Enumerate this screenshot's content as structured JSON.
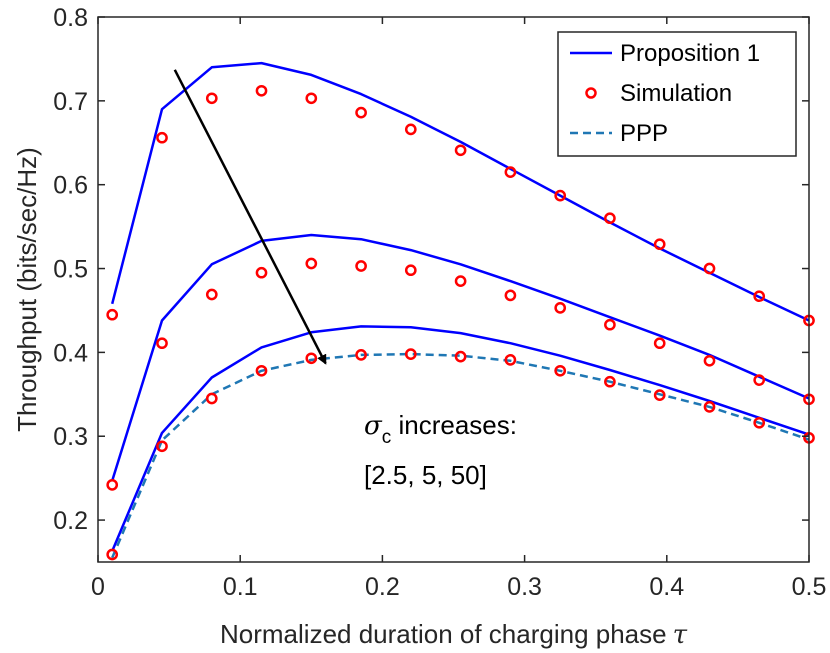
{
  "chart_data": {
    "type": "line",
    "xlabel": "Normalized duration of charging phase",
    "xlabel_symbol": "τ",
    "ylabel": "Throughput (bits/sec/Hz)",
    "xlim": [
      0,
      0.5
    ],
    "ylim": [
      0.15,
      0.8
    ],
    "xticks": [
      0,
      0.1,
      0.2,
      0.3,
      0.4,
      0.5
    ],
    "xtick_labels": [
      "0",
      "0.1",
      "0.2",
      "0.3",
      "0.4",
      "0.5"
    ],
    "yticks": [
      0.2,
      0.3,
      0.4,
      0.5,
      0.6,
      0.7,
      0.8
    ],
    "ytick_labels": [
      "0.2",
      "0.3",
      "0.4",
      "0.5",
      "0.6",
      "0.7",
      "0.8"
    ],
    "grid": false,
    "legend_position": "top-right",
    "legend": [
      "Proposition 1",
      "Simulation",
      "PPP"
    ],
    "x": [
      0.01,
      0.045,
      0.08,
      0.115,
      0.15,
      0.185,
      0.22,
      0.255,
      0.29,
      0.325,
      0.36,
      0.395,
      0.43,
      0.465,
      0.5
    ],
    "series": [
      {
        "name": "Proposition 1",
        "style": "solid",
        "color": "#0000ff",
        "sigma_c": 2.5,
        "values": [
          0.458,
          0.69,
          0.74,
          0.745,
          0.731,
          0.708,
          0.681,
          0.651,
          0.619,
          0.587,
          0.555,
          0.524,
          0.495,
          0.466,
          0.438
        ]
      },
      {
        "name": "Proposition 1",
        "style": "solid",
        "color": "#0000ff",
        "sigma_c": 5,
        "values": [
          0.247,
          0.438,
          0.505,
          0.533,
          0.54,
          0.535,
          0.522,
          0.505,
          0.485,
          0.464,
          0.442,
          0.42,
          0.397,
          0.371,
          0.345
        ]
      },
      {
        "name": "Proposition 1",
        "style": "solid",
        "color": "#0000ff",
        "sigma_c": 50,
        "values": [
          0.163,
          0.304,
          0.37,
          0.406,
          0.424,
          0.431,
          0.43,
          0.423,
          0.411,
          0.396,
          0.379,
          0.361,
          0.342,
          0.322,
          0.302
        ]
      },
      {
        "name": "Simulation",
        "style": "marker",
        "color": "#ff0000",
        "sigma_c": 2.5,
        "values": [
          0.445,
          0.656,
          0.703,
          0.712,
          0.703,
          0.686,
          0.666,
          0.641,
          0.615,
          0.587,
          0.56,
          0.529,
          0.5,
          0.467,
          0.438
        ]
      },
      {
        "name": "Simulation",
        "style": "marker",
        "color": "#ff0000",
        "sigma_c": 5,
        "values": [
          0.242,
          0.411,
          0.469,
          0.495,
          0.506,
          0.503,
          0.498,
          0.485,
          0.468,
          0.453,
          0.433,
          0.411,
          0.39,
          0.367,
          0.344
        ]
      },
      {
        "name": "Simulation",
        "style": "marker",
        "color": "#ff0000",
        "sigma_c": 50,
        "values": [
          0.159,
          0.288,
          0.345,
          0.378,
          0.393,
          0.397,
          0.398,
          0.395,
          0.391,
          0.378,
          0.365,
          0.349,
          0.335,
          0.316,
          0.298
        ]
      },
      {
        "name": "PPP",
        "style": "dashed",
        "color": "#1f77b4",
        "sigma_c": 50,
        "values": [
          0.155,
          0.295,
          0.35,
          0.378,
          0.391,
          0.397,
          0.398,
          0.396,
          0.39,
          0.378,
          0.365,
          0.35,
          0.335,
          0.316,
          0.296
        ]
      }
    ],
    "annotation": {
      "symbol": "σ",
      "subscript": "c",
      "line1_rest": " increases:",
      "line2": "[2.5, 5, 50]",
      "arrow_from": [
        0.054,
        0.737
      ],
      "arrow_to": [
        0.16,
        0.387
      ]
    }
  }
}
